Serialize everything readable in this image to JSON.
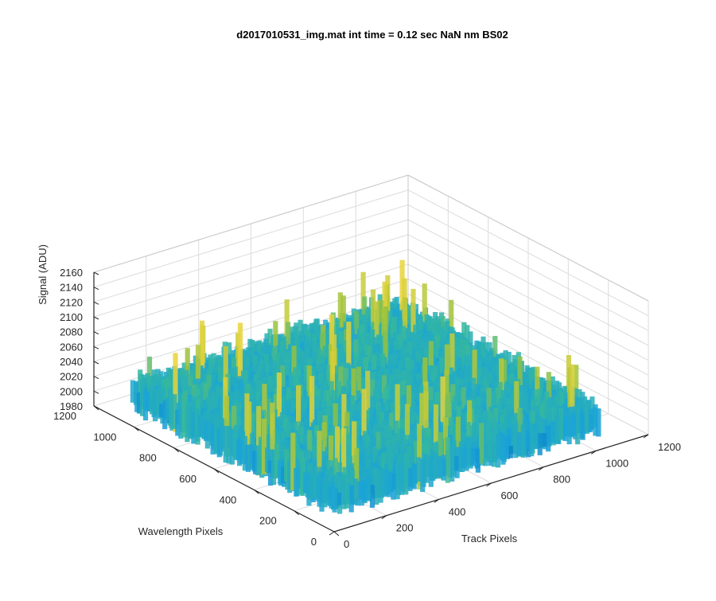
{
  "chart_data": {
    "type": "surface",
    "title": "d2017010531_img.mat int time = 0.12 sec  NaN nm BS02",
    "xlabel": "Track Pixels",
    "ylabel": "Wavelength Pixels",
    "zlabel": "Signal (ADU)",
    "xlim": [
      0,
      1200
    ],
    "ylim": [
      0,
      1200
    ],
    "zlim": [
      1980,
      2160
    ],
    "x_ticks": [
      "0",
      "200",
      "400",
      "600",
      "800",
      "1000",
      "1200"
    ],
    "y_ticks": [
      "0",
      "200",
      "400",
      "600",
      "800",
      "1000",
      "1200"
    ],
    "z_ticks": [
      "1980",
      "2000",
      "2020",
      "2040",
      "2060",
      "2080",
      "2100",
      "2120",
      "2140",
      "2160"
    ],
    "data_extent": {
      "x": [
        0,
        1024
      ],
      "y": [
        0,
        1024
      ]
    },
    "mean_signal": 2040,
    "signal_range": [
      1985,
      2155
    ],
    "grid": true,
    "colormap": "parula",
    "colors": {
      "low": "#0072bd",
      "mid_low": "#1aa3d8",
      "mid": "#33b7a0",
      "mid_high": "#9cc23a",
      "high": "#e8d33a",
      "axis": "#262626",
      "grid": "#dcdcdc"
    }
  }
}
